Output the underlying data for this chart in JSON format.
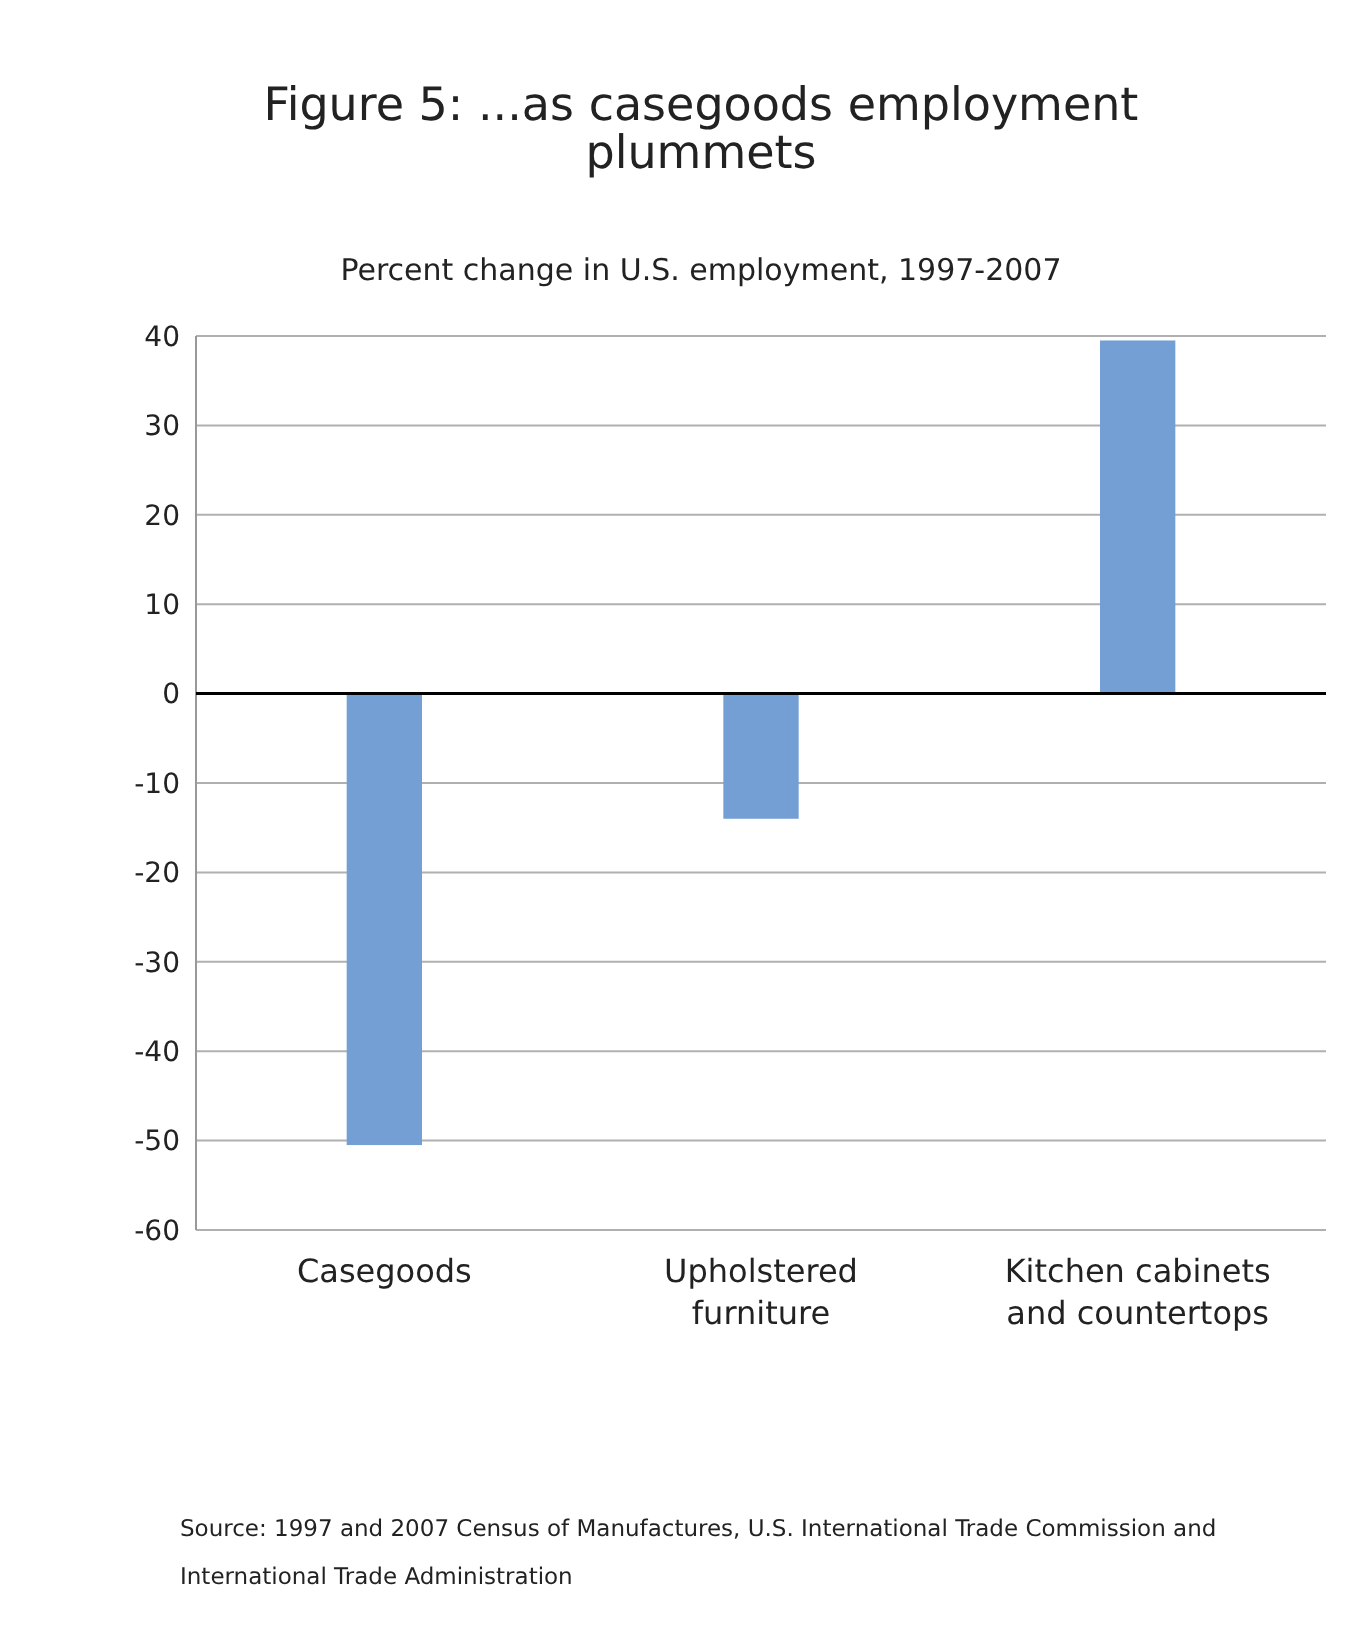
{
  "chart_data": {
    "type": "bar",
    "title": "Figure 5: ...as casegoods employment plummets",
    "subtitle": "Percent change in U.S. employment, 1997-2007",
    "categories": [
      "Casegoods",
      "Upholstered furniture",
      "Kitchen cabinets and countertops"
    ],
    "values": [
      -50.5,
      -14,
      39.5
    ],
    "color": "#739fd5",
    "ylim": [
      -60,
      40
    ],
    "yticks": [
      -60,
      -50,
      -40,
      -30,
      -20,
      -10,
      0,
      10,
      20,
      30,
      40
    ],
    "grid": "y",
    "annotations": [
      "Source: 1997 and 2007 Census of Manufactures, U.S. International Trade Commission and International Trade Administration"
    ]
  }
}
